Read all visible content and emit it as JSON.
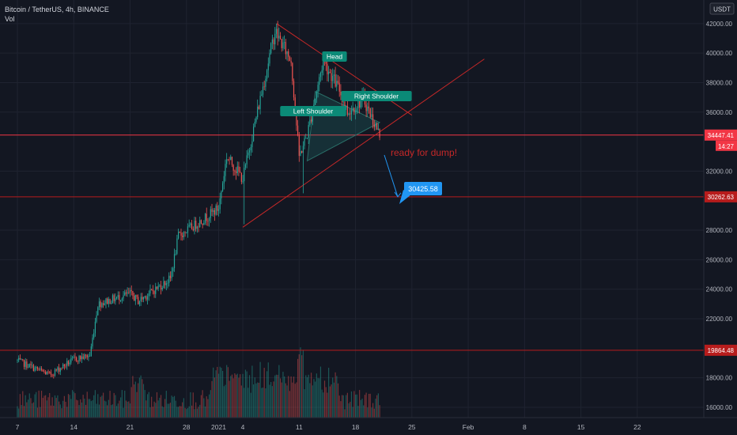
{
  "header": {
    "symbol_line": "Bitcoin / TetherUS, 4h, BINANCE",
    "vol_label": "Vol"
  },
  "price_axis": {
    "currency_badge": "USDT",
    "ticks": [
      {
        "value": 42000,
        "label": "42000.00"
      },
      {
        "value": 40000,
        "label": "40000.00"
      },
      {
        "value": 38000,
        "label": "38000.00"
      },
      {
        "value": 36000,
        "label": "36000.00"
      },
      {
        "value": 32000,
        "label": "32000.00"
      },
      {
        "value": 28000,
        "label": "28000.00"
      },
      {
        "value": 26000,
        "label": "26000.00"
      },
      {
        "value": 24000,
        "label": "24000.00"
      },
      {
        "value": 22000,
        "label": "22000.00"
      },
      {
        "value": 18000,
        "label": "18000.00"
      },
      {
        "value": 16000,
        "label": "16000.00"
      }
    ]
  },
  "time_axis": {
    "labels": [
      "7",
      "14",
      "21",
      "28",
      "2021",
      "4",
      "11",
      "18",
      "25",
      "Feb",
      "8",
      "15",
      "22"
    ]
  },
  "markers": {
    "current_price": {
      "value": 34447.41,
      "label": "34447.41",
      "countdown": "14:27",
      "color": "#f23645"
    },
    "level_upper": {
      "value": 30262.63,
      "label": "30262.63",
      "color": "#b71c1c"
    },
    "level_lower": {
      "value": 19864.48,
      "label": "19864.48",
      "color": "#b71c1c"
    }
  },
  "annotations": {
    "head": "Head",
    "left_shoulder": "Left Shoulder",
    "right_shoulder": "Right Shoulder",
    "ready_text": "ready for dump!",
    "target": "30425.58"
  },
  "colors": {
    "up": "#26a69a",
    "down": "#ef5350",
    "trendline": "#c62828",
    "label_bg": "#0b8a77",
    "target_bg": "#2196f3",
    "background": "#131722"
  },
  "chart_data": {
    "type": "candlestick",
    "symbol": "Bitcoin / TetherUS",
    "interval": "4h",
    "exchange": "BINANCE",
    "ylim": [
      15300,
      43600
    ],
    "waypoints": [
      {
        "date": "2020-12-07",
        "price": 19150
      },
      {
        "date": "2020-12-11",
        "price": 18200
      },
      {
        "date": "2020-12-14",
        "price": 19250
      },
      {
        "date": "2020-12-16",
        "price": 19500
      },
      {
        "date": "2020-12-17",
        "price": 23000
      },
      {
        "date": "2020-12-21",
        "price": 23700
      },
      {
        "date": "2020-12-22",
        "price": 23200
      },
      {
        "date": "2020-12-26",
        "price": 24700
      },
      {
        "date": "2020-12-27",
        "price": 27600
      },
      {
        "date": "2020-12-30",
        "price": 28700
      },
      {
        "date": "2021-01-01",
        "price": 29500
      },
      {
        "date": "2021-01-02",
        "price": 33000
      },
      {
        "date": "2021-01-04",
        "price": 31500
      },
      {
        "date": "2021-01-07",
        "price": 39000
      },
      {
        "date": "2021-01-08",
        "price": 41500
      },
      {
        "date": "2021-01-10",
        "price": 39500
      },
      {
        "date": "2021-01-11",
        "price": 33000
      },
      {
        "date": "2021-01-12",
        "price": 34500
      },
      {
        "date": "2021-01-13",
        "price": 37000
      },
      {
        "date": "2021-01-14",
        "price": 39500
      },
      {
        "date": "2021-01-16",
        "price": 37500
      },
      {
        "date": "2021-01-17",
        "price": 36000
      },
      {
        "date": "2021-01-19",
        "price": 36900
      },
      {
        "date": "2021-01-21",
        "price": 34447
      }
    ],
    "levels": [
      30262.63,
      19864.48
    ],
    "last_price": 34447.41,
    "target": 30425.58
  }
}
